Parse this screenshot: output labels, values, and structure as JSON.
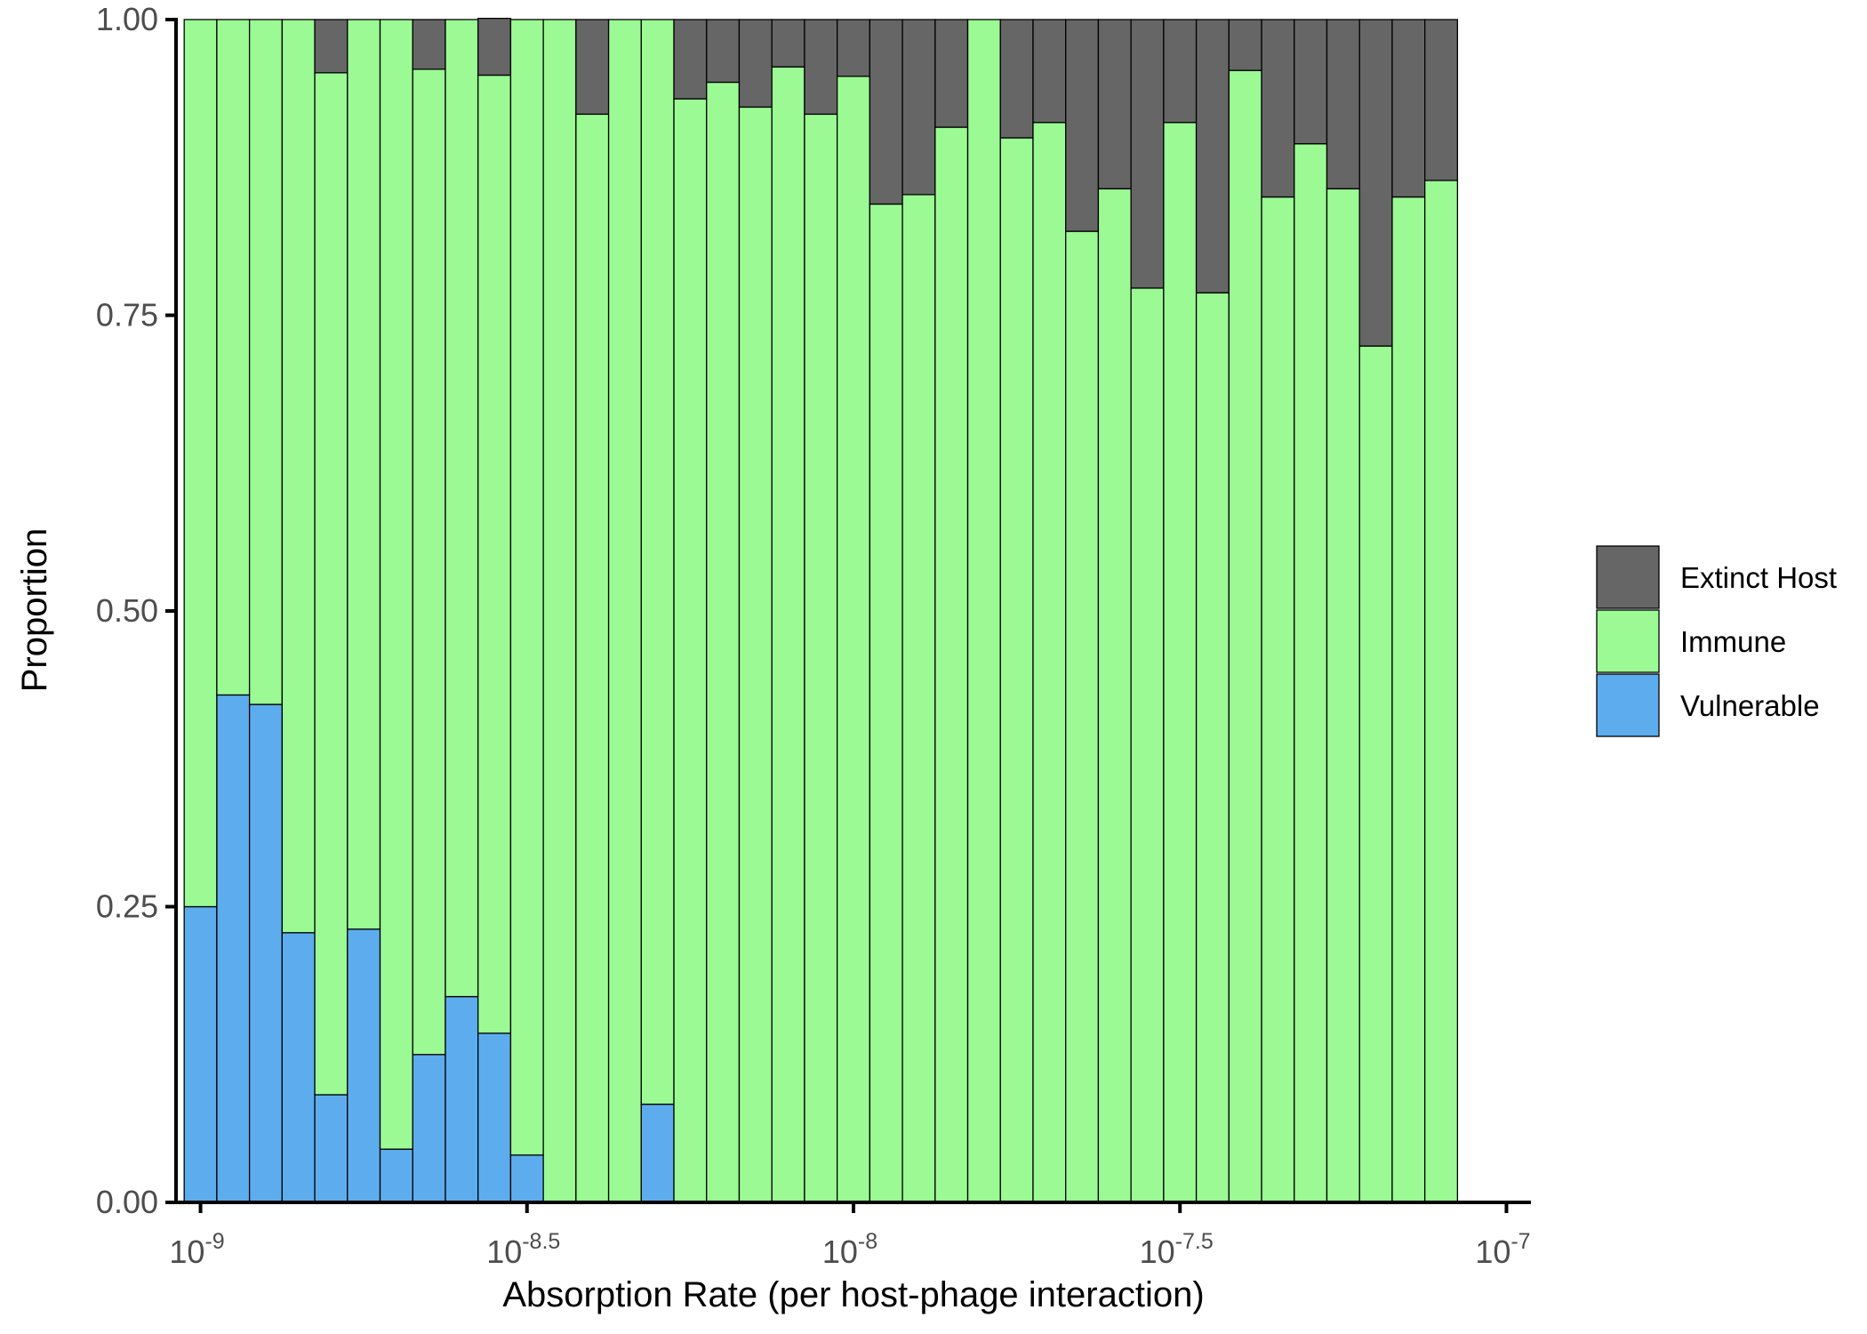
{
  "colors": {
    "Extinct Host": "#666666",
    "Immune": "#9BFA94",
    "Vulnerable": "#5DADEE",
    "bar_outline": "#000000",
    "axis": "#000000",
    "tick_text": "#4d4d4d"
  },
  "chart_data": {
    "type": "bar",
    "stacked": true,
    "title": "",
    "xlabel": "Absorption Rate (per host-phage interaction)",
    "ylabel": "Proportion",
    "x_scale": "log10",
    "xlim": [
      1e-09,
      1e-07
    ],
    "ylim": [
      0,
      1
    ],
    "grid": false,
    "legend_position": "right",
    "x_ticks": [
      {
        "base": "10",
        "exp": "-9",
        "log10": -9
      },
      {
        "base": "10",
        "exp": "-8.5",
        "log10": -8.5
      },
      {
        "base": "10",
        "exp": "-8",
        "log10": -8
      },
      {
        "base": "10",
        "exp": "-7.5",
        "log10": -7.5
      },
      {
        "base": "10",
        "exp": "-7",
        "log10": -7
      }
    ],
    "y_ticks": [
      "0.00",
      "0.25",
      "0.50",
      "0.75",
      "1.00"
    ],
    "legend": [
      "Extinct Host",
      "Immune",
      "Vulnerable"
    ],
    "bin_centers_log10": [
      -9.0,
      -8.95,
      -8.9,
      -8.85,
      -8.8,
      -8.75,
      -8.7,
      -8.65,
      -8.6,
      -8.55,
      -8.5,
      -8.45,
      -8.4,
      -8.35,
      -8.3,
      -8.25,
      -8.2,
      -8.15,
      -8.1,
      -8.05,
      -8.0,
      -7.95,
      -7.9,
      -7.85,
      -7.8,
      -7.75,
      -7.7,
      -7.65,
      -7.6,
      -7.55,
      -7.5,
      -7.45,
      -7.4,
      -7.35,
      -7.3,
      -7.25,
      -7.2,
      -7.15,
      -7.1,
      -7.05,
      -7.0
    ],
    "series": [
      {
        "name": "Vulnerable",
        "values": [
          0.25,
          0.429,
          0.421,
          0.228,
          0.091,
          0.231,
          0.045,
          0.125,
          0.174,
          0.143,
          0.04,
          0,
          0,
          0,
          0.083,
          0,
          0,
          0,
          0,
          0,
          0,
          0,
          0,
          0,
          0,
          0,
          0,
          0,
          0,
          0,
          0,
          0,
          0,
          0,
          0,
          0,
          0,
          0,
          0,
          0,
          0
        ]
      },
      {
        "name": "Immune",
        "values": [
          0.75,
          0.571,
          0.579,
          0.772,
          0.864,
          0.769,
          0.955,
          0.833,
          0.826,
          0.81,
          0.96,
          1.0,
          0.92,
          1.0,
          0.917,
          0.933,
          0.947,
          0.926,
          0.96,
          0.92,
          0.952,
          0.844,
          0.852,
          0.909,
          1.0,
          0.9,
          0.913,
          0.821,
          0.857,
          0.773,
          0.913,
          0.769,
          0.957,
          0.85,
          0.895,
          0.857,
          0.724,
          0.85,
          0.864,
          0,
          0
        ]
      },
      {
        "name": "Extinct Host",
        "values": [
          0,
          0,
          0,
          0,
          0.045,
          0,
          0,
          0.042,
          0,
          0.048,
          0,
          0,
          0.08,
          0,
          0,
          0.067,
          0.053,
          0.074,
          0.04,
          0.08,
          0.048,
          0.156,
          0.148,
          0.091,
          0,
          0.1,
          0.087,
          0.179,
          0.143,
          0.227,
          0.087,
          0.231,
          0.043,
          0.15,
          0.105,
          0.143,
          0.276,
          0.15,
          0.136,
          0,
          0
        ]
      }
    ]
  }
}
